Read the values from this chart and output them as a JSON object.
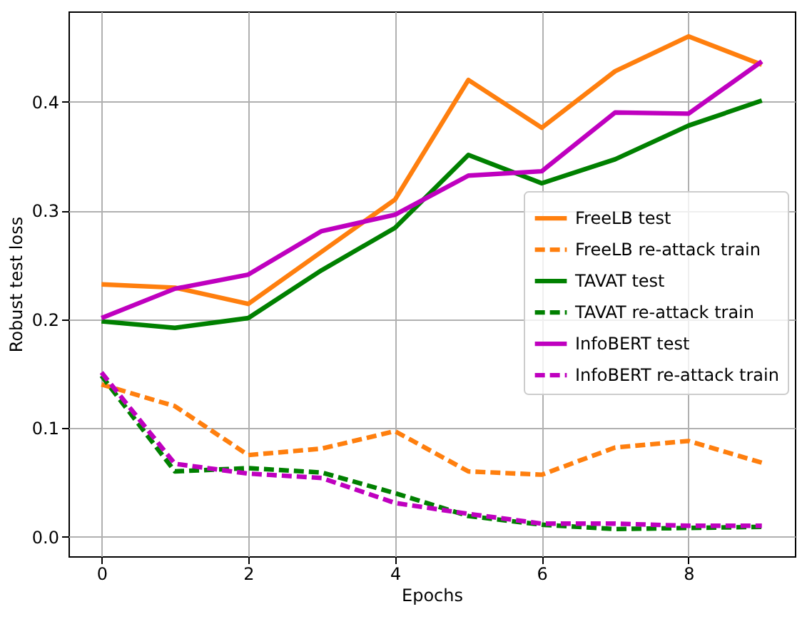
{
  "chart_data": {
    "type": "line",
    "xlabel": "Epochs",
    "ylabel": "Robust test loss",
    "x": [
      0,
      1,
      2,
      3,
      4,
      5,
      6,
      7,
      8,
      9
    ],
    "xlim": [
      -0.45,
      9.45
    ],
    "xticks": [
      0,
      2,
      4,
      6,
      8
    ],
    "ylim": [
      -0.018,
      0.483
    ],
    "yticks": [
      {
        "value": 0,
        "label": "0.0"
      },
      0.1,
      0.2,
      0.3,
      0.4
    ],
    "grid": true,
    "legend": "right",
    "series": [
      {
        "name": "FreeLB test",
        "color": "#ff7f0e",
        "line_style": "solid",
        "values": [
          0.232,
          0.229,
          0.214,
          0.262,
          0.31,
          0.42,
          0.376,
          0.428,
          0.46,
          0.434
        ]
      },
      {
        "name": "FreeLB re-attack train",
        "color": "#ff7f0e",
        "line_style": "dashed",
        "values": [
          0.14,
          0.12,
          0.075,
          0.081,
          0.097,
          0.06,
          0.057,
          0.082,
          0.088,
          0.068
        ]
      },
      {
        "name": "TAVAT test",
        "color": "#008000",
        "line_style": "solid",
        "values": [
          0.198,
          0.192,
          0.201,
          0.245,
          0.284,
          0.351,
          0.325,
          0.347,
          0.378,
          0.401
        ]
      },
      {
        "name": "TAVAT re-attack train",
        "color": "#008000",
        "line_style": "dashed",
        "values": [
          0.148,
          0.06,
          0.063,
          0.059,
          0.04,
          0.019,
          0.011,
          0.007,
          0.008,
          0.009
        ]
      },
      {
        "name": "InfoBERT test",
        "color": "#bf00bf",
        "line_style": "solid",
        "values": [
          0.201,
          0.228,
          0.241,
          0.281,
          0.296,
          0.332,
          0.336,
          0.39,
          0.389,
          0.437
        ]
      },
      {
        "name": "InfoBERT re-attack train",
        "color": "#bf00bf",
        "line_style": "dashed",
        "values": [
          0.151,
          0.067,
          0.058,
          0.054,
          0.031,
          0.021,
          0.012,
          0.012,
          0.01,
          0.01
        ]
      }
    ]
  }
}
